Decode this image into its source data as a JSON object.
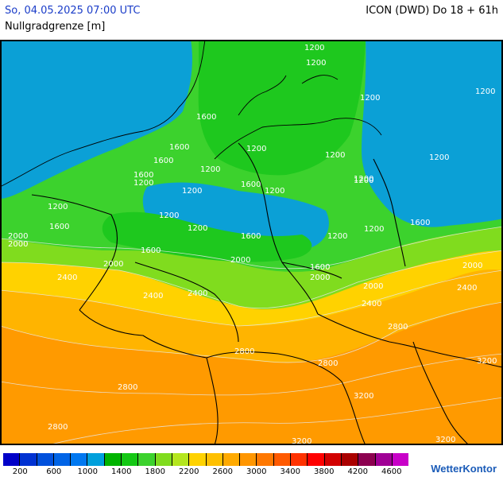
{
  "header": {
    "datetime": "So, 04.05.2025 07:00 UTC",
    "model": "ICON (DWD) Do 18 + 61h",
    "parameter": "Nullgradgrenze [m]"
  },
  "map": {
    "contour_labels": [
      "1200",
      "1200",
      "1200",
      "1200",
      "1200",
      "1200",
      "1200",
      "1200",
      "1200",
      "1200",
      "1200",
      "1200",
      "1200",
      "1200",
      "1200",
      "1200",
      "1200",
      "1200",
      "1600",
      "1600",
      "1600",
      "1600",
      "1600",
      "1600",
      "1600",
      "1600",
      "1600",
      "1600",
      "2000",
      "2000",
      "2000",
      "2000",
      "2000",
      "2000",
      "2000",
      "2400",
      "2400",
      "2400",
      "2400",
      "2400",
      "2800",
      "2800",
      "2800",
      "2800",
      "2800",
      "3200",
      "3200",
      "3200",
      "3200"
    ],
    "colors": {
      "blue": "#0ba0d6",
      "green_dark": "#1ec81e",
      "green": "#3cd22d",
      "green_light": "#80dc1e",
      "yellow": "#ffd200",
      "orange_light": "#ffb400",
      "orange": "#ff9a00",
      "orange_dark": "#ff7a00",
      "border": "#000000"
    }
  },
  "legend": {
    "colors": [
      "#0000c8",
      "#0032d2",
      "#0050dc",
      "#0064e6",
      "#0078f0",
      "#00a0dc",
      "#00b400",
      "#14c814",
      "#3cd22d",
      "#80dc1e",
      "#b4e61e",
      "#ffd200",
      "#ffc000",
      "#ffaa00",
      "#ff9600",
      "#ff7800",
      "#ff5a00",
      "#ff3200",
      "#ff0000",
      "#d20000",
      "#aa0000",
      "#8c0050",
      "#a00096",
      "#c800c8"
    ],
    "ticks": [
      "200",
      "600",
      "1000",
      "1400",
      "1800",
      "2200",
      "2600",
      "3000",
      "3400",
      "3800",
      "4200",
      "4600"
    ]
  },
  "brand": "WetterKontor"
}
